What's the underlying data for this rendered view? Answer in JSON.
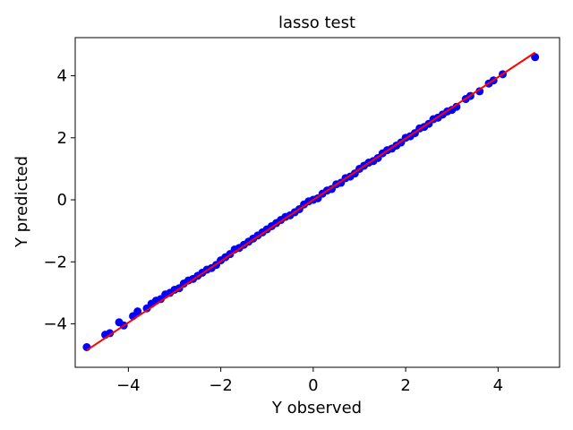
{
  "chart_data": {
    "type": "scatter",
    "title": "lasso test",
    "xlabel": "Y observed",
    "ylabel": "Y predicted",
    "xlim": [
      -5.15,
      5.33
    ],
    "ylim": [
      -5.4,
      5.23
    ],
    "xticks": [
      -4,
      -2,
      0,
      2,
      4
    ],
    "yticks": [
      -4,
      -2,
      0,
      2,
      4
    ],
    "xtick_labels": [
      "−4",
      "−2",
      "0",
      "2",
      "4"
    ],
    "ytick_labels": [
      "−4",
      "−2",
      "0",
      "2",
      "4"
    ],
    "grid": false,
    "colors": {
      "points": "#0000ff",
      "fit_line": "#ff0000"
    },
    "series": [
      {
        "type": "scatter",
        "x": [
          -4.9,
          -4.5,
          -4.4,
          -4.2,
          -4.1,
          -3.9,
          -3.8,
          -3.6,
          -3.5,
          -3.4,
          -3.3,
          -3.2,
          -3.1,
          -3.0,
          -2.9,
          -2.8,
          -2.7,
          -2.6,
          -2.5,
          -2.4,
          -2.3,
          -2.2,
          -2.1,
          -2.0,
          -1.9,
          -1.8,
          -1.7,
          -1.6,
          -1.5,
          -1.4,
          -1.3,
          -1.2,
          -1.1,
          -1.0,
          -0.9,
          -0.8,
          -0.7,
          -0.6,
          -0.5,
          -0.4,
          -0.3,
          -0.2,
          -0.1,
          0.0,
          0.1,
          0.2,
          0.3,
          0.4,
          0.5,
          0.6,
          0.7,
          0.8,
          0.9,
          1.0,
          1.1,
          1.2,
          1.3,
          1.4,
          1.5,
          1.6,
          1.7,
          1.8,
          1.9,
          2.0,
          2.1,
          2.2,
          2.3,
          2.4,
          2.5,
          2.6,
          2.7,
          2.8,
          2.9,
          3.0,
          3.1,
          3.3,
          3.4,
          3.6,
          3.8,
          3.9,
          4.1,
          4.8
        ],
        "y": [
          -4.75,
          -4.35,
          -4.3,
          -3.95,
          -4.05,
          -3.75,
          -3.6,
          -3.5,
          -3.35,
          -3.25,
          -3.2,
          -3.05,
          -3.0,
          -2.9,
          -2.85,
          -2.7,
          -2.6,
          -2.55,
          -2.45,
          -2.35,
          -2.25,
          -2.2,
          -2.1,
          -1.95,
          -1.85,
          -1.75,
          -1.6,
          -1.55,
          -1.45,
          -1.35,
          -1.25,
          -1.15,
          -1.05,
          -0.95,
          -0.85,
          -0.75,
          -0.65,
          -0.55,
          -0.5,
          -0.4,
          -0.3,
          -0.15,
          -0.05,
          0.0,
          0.05,
          0.2,
          0.3,
          0.35,
          0.5,
          0.55,
          0.7,
          0.75,
          0.85,
          1.0,
          1.1,
          1.2,
          1.25,
          1.35,
          1.5,
          1.6,
          1.65,
          1.75,
          1.85,
          2.0,
          2.05,
          2.15,
          2.3,
          2.35,
          2.45,
          2.6,
          2.65,
          2.75,
          2.85,
          2.9,
          3.0,
          3.25,
          3.35,
          3.5,
          3.75,
          3.85,
          4.05,
          4.6
        ]
      },
      {
        "type": "line",
        "x": [
          -4.9,
          4.8
        ],
        "y": [
          -4.85,
          4.75
        ]
      }
    ]
  }
}
